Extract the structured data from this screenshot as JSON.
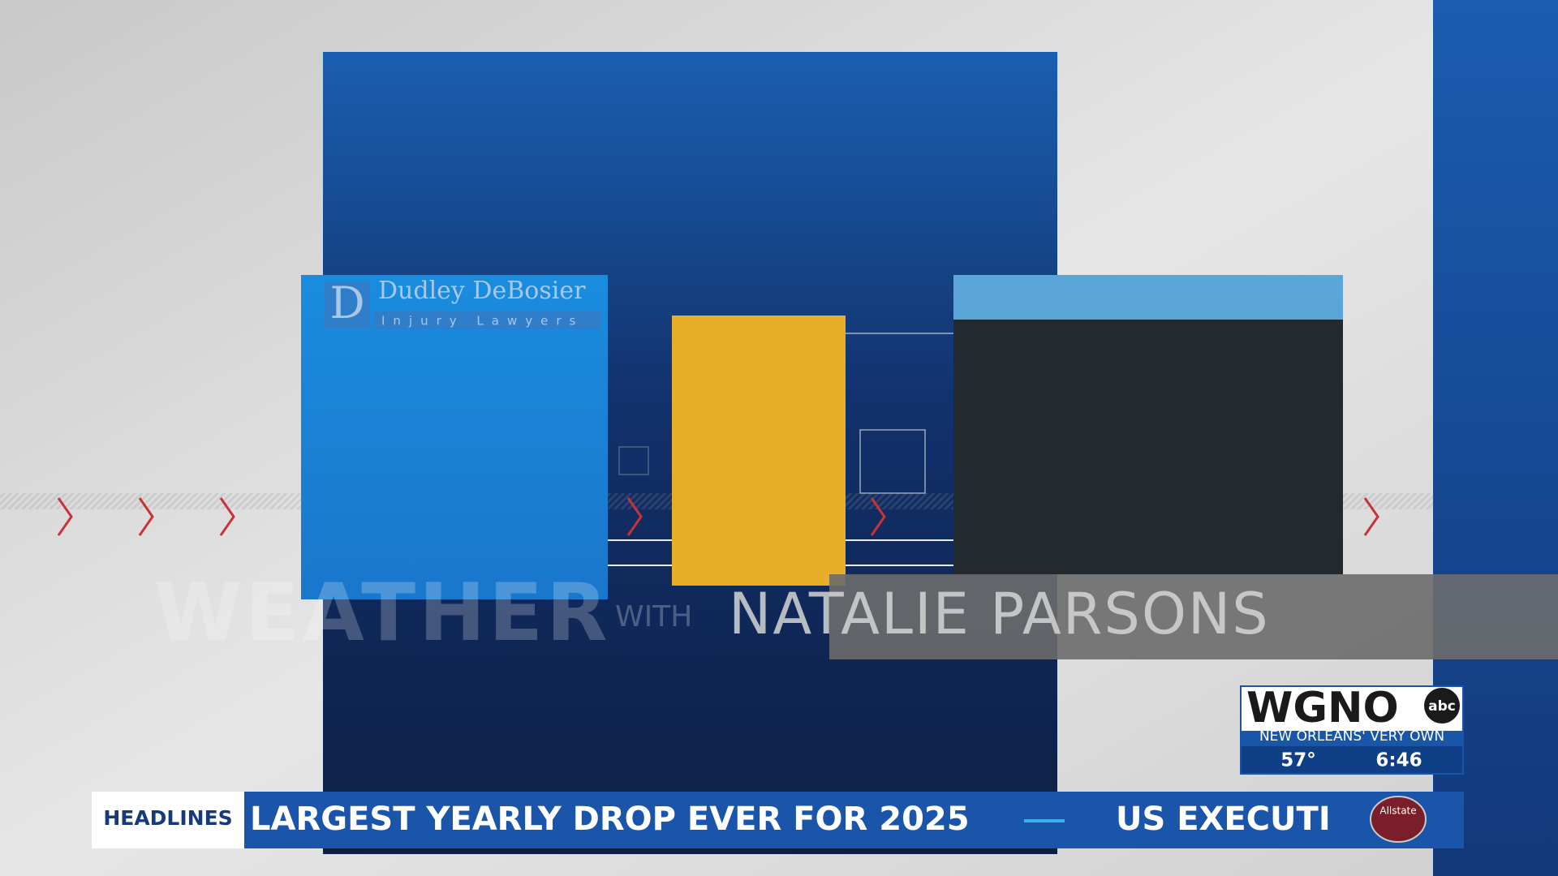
{
  "sponsor": {
    "name": "Dudley DeBosier",
    "tagline": "Injury Lawyers"
  },
  "title": {
    "main": "WEATHER",
    "with": "WITH",
    "name": "NATALIE PARSONS"
  },
  "station": {
    "call": "WGNO",
    "network": "abc",
    "slogan": "NEW ORLEANS' VERY OWN",
    "temperature": "57°",
    "time": "6:46"
  },
  "ticker": {
    "label": "HEADLINES",
    "items": [
      "LARGEST YEARLY DROP EVER FOR 2025",
      "US EXECUTI"
    ],
    "logo": "Allstate"
  }
}
